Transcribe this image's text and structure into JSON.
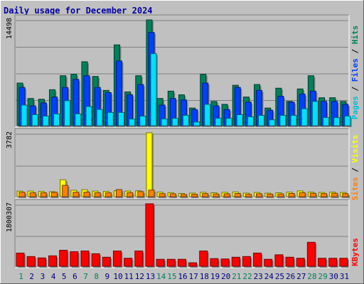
{
  "chart_data": [
    {
      "type": "bar",
      "title": "Daily usage for December 2024",
      "panel": "hits-files-pages",
      "max_label": "14498",
      "ylim": [
        0,
        14498
      ],
      "legend": [
        "Pages",
        "Files",
        "Hits"
      ],
      "legend_separator": " / ",
      "categories": [
        "1",
        "2",
        "3",
        "4",
        "5",
        "6",
        "7",
        "8",
        "9",
        "10",
        "11",
        "12",
        "13",
        "14",
        "15",
        "16",
        "17",
        "18",
        "19",
        "20",
        "21",
        "22",
        "23",
        "24",
        "25",
        "26",
        "27",
        "28",
        "29",
        "30",
        "31"
      ],
      "weekend_days": [
        "1",
        "7",
        "8",
        "14",
        "15",
        "21",
        "22",
        "28",
        "29"
      ],
      "series": [
        {
          "name": "Hits",
          "color": "#00805c",
          "values": [
            5800,
            3700,
            3600,
            4900,
            6800,
            7000,
            8700,
            6700,
            4800,
            11000,
            4600,
            6800,
            14400,
            3700,
            4700,
            4200,
            2400,
            7000,
            3300,
            2900,
            5500,
            3900,
            5600,
            2400,
            5100,
            3300,
            5000,
            6800,
            3800,
            3800,
            3300
          ]
        },
        {
          "name": "Files",
          "color": "#0040ff",
          "values": [
            5200,
            2700,
            3100,
            3900,
            5200,
            6300,
            6800,
            5200,
            4500,
            8800,
            4200,
            5600,
            12700,
            2800,
            3700,
            3500,
            2200,
            5800,
            2700,
            2200,
            5200,
            3200,
            4800,
            2100,
            4000,
            3200,
            4300,
            4700,
            3300,
            3300,
            2900
          ]
        },
        {
          "name": "Pages",
          "color": "#00e0ff",
          "values": [
            2800,
            1500,
            1300,
            1600,
            3400,
            1600,
            2600,
            2200,
            1800,
            1800,
            900,
            1300,
            9800,
            900,
            1000,
            1400,
            500,
            2900,
            1000,
            1000,
            1500,
            1200,
            1400,
            800,
            1400,
            1400,
            2300,
            3300,
            1100,
            1100,
            1300
          ]
        }
      ]
    },
    {
      "type": "bar",
      "panel": "visits-sites",
      "max_label": "3782",
      "ylim": [
        0,
        3782
      ],
      "legend": [
        "Sites",
        "Visits"
      ],
      "legend_separator": " / ",
      "categories": [
        "1",
        "2",
        "3",
        "4",
        "5",
        "6",
        "7",
        "8",
        "9",
        "10",
        "11",
        "12",
        "13",
        "14",
        "15",
        "16",
        "17",
        "18",
        "19",
        "20",
        "21",
        "22",
        "23",
        "24",
        "25",
        "26",
        "27",
        "28",
        "29",
        "30",
        "31"
      ],
      "series": [
        {
          "name": "Visits",
          "color": "#ffff00",
          "values": [
            330,
            330,
            310,
            290,
            1000,
            380,
            410,
            330,
            310,
            350,
            330,
            350,
            3782,
            270,
            240,
            190,
            210,
            260,
            230,
            260,
            280,
            210,
            250,
            210,
            230,
            270,
            340,
            270,
            250,
            270,
            250
          ]
        },
        {
          "name": "Sites",
          "color": "#ff8000",
          "values": [
            260,
            230,
            230,
            260,
            670,
            260,
            270,
            230,
            230,
            420,
            240,
            300,
            390,
            180,
            170,
            130,
            140,
            180,
            160,
            170,
            190,
            140,
            170,
            150,
            160,
            190,
            240,
            200,
            180,
            200,
            180
          ]
        }
      ]
    },
    {
      "type": "bar",
      "panel": "kbytes",
      "max_label": "1800307",
      "ylim": [
        0,
        1800307
      ],
      "legend": [
        "KBytes"
      ],
      "categories": [
        "1",
        "2",
        "3",
        "4",
        "5",
        "6",
        "7",
        "8",
        "9",
        "10",
        "11",
        "12",
        "13",
        "14",
        "15",
        "16",
        "17",
        "18",
        "19",
        "20",
        "21",
        "22",
        "23",
        "24",
        "25",
        "26",
        "27",
        "28",
        "29",
        "30",
        "31"
      ],
      "series": [
        {
          "name": "KBytes",
          "color": "#ff0000",
          "values": [
            380000,
            280000,
            240000,
            300000,
            460000,
            420000,
            440000,
            360000,
            260000,
            440000,
            230000,
            440000,
            1800307,
            200000,
            200000,
            200000,
            100000,
            440000,
            220000,
            210000,
            260000,
            280000,
            380000,
            200000,
            330000,
            260000,
            230000,
            690000,
            230000,
            230000,
            230000
          ]
        }
      ]
    }
  ]
}
